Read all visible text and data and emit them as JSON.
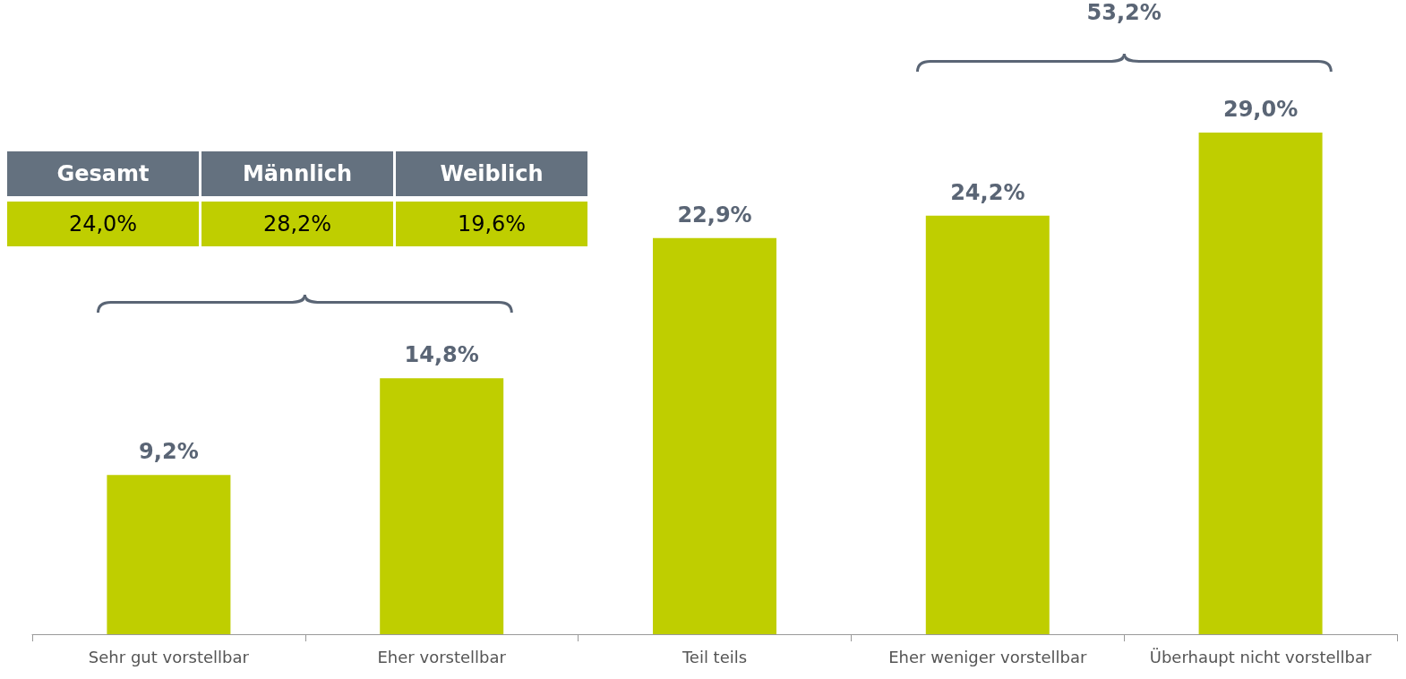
{
  "chart_data": {
    "type": "bar",
    "categories": [
      "Sehr gut vorstellbar",
      "Eher vorstellbar",
      "Teil teils",
      "Eher weniger vorstellbar",
      "Überhaupt nicht vorstellbar"
    ],
    "values": [
      9.2,
      14.8,
      22.9,
      24.2,
      29.0
    ],
    "value_labels": [
      "9,2%",
      "14,8%",
      "22,9%",
      "24,2%",
      "29,0%"
    ],
    "color": "#bfce00",
    "annotations": [
      "Gesamt",
      "Männlich",
      "Weiblich",
      "24,0%",
      "28,2%",
      "19,6%",
      "53,2%"
    ]
  }
}
